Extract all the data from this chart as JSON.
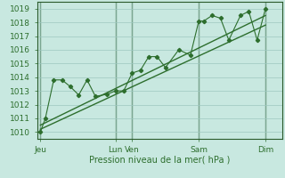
{
  "bg_color": "#c8e8e0",
  "grid_color": "#9dc8c0",
  "line_color": "#2d6e2d",
  "xlabel": "Pression niveau de la mer( hPa )",
  "ylim": [
    1009.5,
    1019.5
  ],
  "yticks": [
    1010,
    1011,
    1012,
    1013,
    1014,
    1015,
    1016,
    1017,
    1018,
    1019
  ],
  "xlim": [
    -0.2,
    14.5
  ],
  "xtick_positions": [
    0.0,
    4.5,
    5.5,
    9.5,
    13.5
  ],
  "xtick_labels": [
    "Jeu",
    "Lun",
    "Ven",
    "Sam",
    "Dim"
  ],
  "vlines": [
    0.0,
    4.5,
    5.5,
    9.5,
    13.5
  ],
  "trend1_x": [
    0.0,
    13.5
  ],
  "trend1_y": [
    1010.2,
    1017.8
  ],
  "trend2_x": [
    0.0,
    13.5
  ],
  "trend2_y": [
    1010.5,
    1018.5
  ],
  "line_markers": {
    "x": [
      0.0,
      0.3,
      0.8,
      1.3,
      1.8,
      2.3,
      2.8,
      3.3,
      4.0,
      4.5,
      5.0,
      5.5,
      6.0,
      6.5,
      7.0,
      7.5,
      8.3,
      9.0,
      9.5,
      9.8,
      10.3,
      10.8,
      11.3,
      12.0,
      12.5,
      13.0,
      13.5
    ],
    "y": [
      1010.0,
      1011.0,
      1013.8,
      1013.8,
      1013.3,
      1012.7,
      1013.8,
      1012.6,
      1012.75,
      1013.0,
      1013.0,
      1014.3,
      1014.5,
      1015.5,
      1015.5,
      1014.7,
      1016.0,
      1015.6,
      1018.1,
      1018.1,
      1018.5,
      1018.3,
      1016.7,
      1018.5,
      1018.8,
      1016.7,
      1019.0
    ]
  }
}
